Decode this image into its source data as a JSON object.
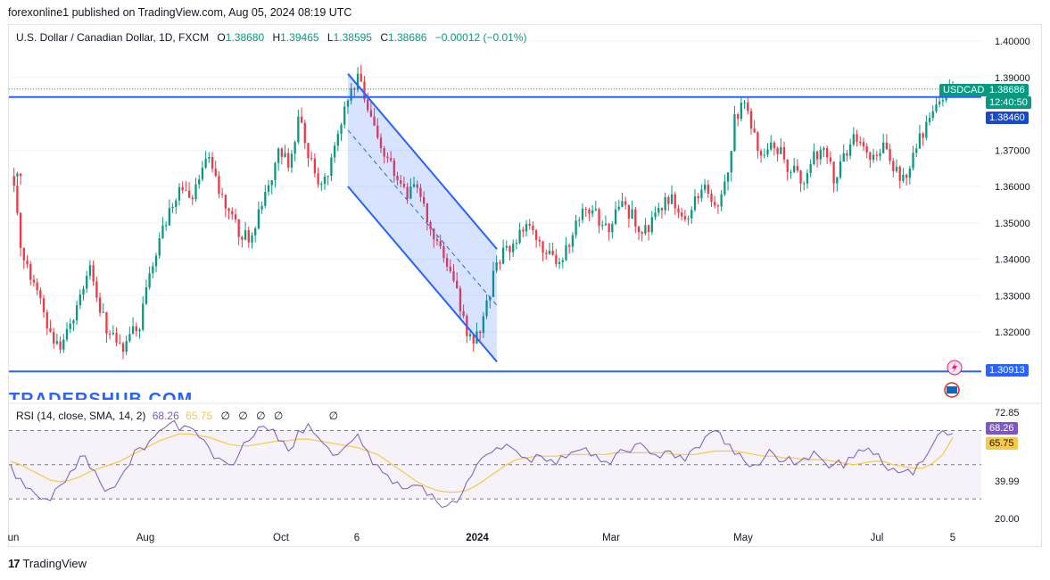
{
  "header": {
    "text": "forexonline1 published on TradingView.com, Aug 05, 2024 08:19 UTC"
  },
  "legend": {
    "symbol": "U.S. Dollar / Canadian Dollar, 1D, FXCM",
    "open_label": "O",
    "open": "1.38680",
    "high_label": "H",
    "high": "1.39465",
    "low_label": "L",
    "low": "1.38595",
    "close_label": "C",
    "close": "1.38686",
    "change": "−0.00012 (−0.01%)"
  },
  "price_tags": {
    "symbol": "USDCAD",
    "last": "1.38686",
    "countdown": "12:40:50",
    "upper_line": "1.38460",
    "lower_line": "1.30913"
  },
  "watermark": "TRADERSHUB.COM",
  "rsi": {
    "label": "RSI (14, close, SMA, 14, 2)",
    "rsi_value": "68.26",
    "sma_value": "65.75",
    "na_marks": [
      "∅",
      "∅",
      "∅",
      "∅",
      "∅"
    ],
    "axis_labels": [
      "72.85",
      "39.99",
      "20.00"
    ]
  },
  "footer": {
    "brand": "TradingView"
  },
  "colors": {
    "up": "#089981",
    "down": "#f23645",
    "line": "#2962ff",
    "channel_fill": "#2962ff",
    "rsi": "#7e57c2",
    "rsi_sma": "#f7c948",
    "rsi_band": "#7e57c2"
  },
  "chart_data": [
    {
      "type": "candlestick",
      "title": "U.S. Dollar / Canadian Dollar, 1D, FXCM",
      "ylim": [
        1.3,
        1.405
      ],
      "y_ticks": [
        "1.40000",
        "1.39000",
        "1.37000",
        "1.36000",
        "1.35000",
        "1.34000",
        "1.33000",
        "1.32000"
      ],
      "x_ticks": [
        "un",
        "Aug",
        "Oct",
        "6",
        "2024",
        "Mar",
        "May",
        "Jul",
        "5"
      ],
      "horizontal_lines": [
        1.3846,
        1.30913
      ],
      "channel": {
        "upper_start": 1.391,
        "upper_end": 1.3428,
        "lower_start": 1.36,
        "lower_end": 1.3118
      },
      "series": [
        {
          "name": "USDCAD",
          "close_path": [
            1.365,
            1.345,
            1.335,
            1.33,
            1.318,
            1.315,
            1.322,
            1.33,
            1.338,
            1.325,
            1.32,
            1.315,
            1.318,
            1.322,
            1.335,
            1.345,
            1.352,
            1.36,
            1.355,
            1.362,
            1.368,
            1.358,
            1.355,
            1.348,
            1.345,
            1.352,
            1.36,
            1.372,
            1.365,
            1.378,
            1.37,
            1.36,
            1.365,
            1.375,
            1.385,
            1.39,
            1.38,
            1.372,
            1.368,
            1.362,
            1.357,
            1.36,
            1.352,
            1.345,
            1.338,
            1.33,
            1.32,
            1.318,
            1.328,
            1.338,
            1.343,
            1.345,
            1.35,
            1.347,
            1.342,
            1.338,
            1.342,
            1.35,
            1.355,
            1.352,
            1.348,
            1.352,
            1.355,
            1.35,
            1.348,
            1.352,
            1.357,
            1.355,
            1.35,
            1.356,
            1.36,
            1.354,
            1.36,
            1.378,
            1.384,
            1.373,
            1.368,
            1.372,
            1.367,
            1.364,
            1.362,
            1.368,
            1.372,
            1.363,
            1.367,
            1.373,
            1.371,
            1.368,
            1.37,
            1.365,
            1.362,
            1.368,
            1.375,
            1.38,
            1.384,
            1.3868
          ]
        }
      ]
    },
    {
      "type": "line",
      "title": "RSI (14, close, SMA, 14, 2)",
      "ylim": [
        20,
        80
      ],
      "bands": [
        30,
        70
      ],
      "series": [
        {
          "name": "RSI",
          "values": [
            50,
            42,
            36,
            30,
            29,
            38,
            46,
            55,
            48,
            40,
            36,
            42,
            50,
            60,
            64,
            70,
            74,
            70,
            72,
            66,
            60,
            54,
            50,
            56,
            64,
            72,
            70,
            64,
            58,
            70,
            74,
            66,
            60,
            56,
            62,
            68,
            58,
            50,
            44,
            40,
            36,
            38,
            32,
            28,
            26,
            28,
            40,
            50,
            56,
            60,
            62,
            58,
            54,
            56,
            52,
            50,
            54,
            58,
            60,
            56,
            52,
            56,
            58,
            62,
            60,
            56,
            58,
            54,
            52,
            60,
            66,
            70,
            62,
            56,
            52,
            50,
            54,
            56,
            52,
            50,
            54,
            58,
            52,
            50,
            48,
            54,
            58,
            56,
            50,
            48,
            46,
            44,
            52,
            62,
            70,
            68.26
          ]
        },
        {
          "name": "SMA",
          "values": [
            52,
            50,
            47,
            44,
            41,
            40,
            41,
            43,
            46,
            48,
            50,
            52,
            55,
            58,
            61,
            64,
            66,
            68,
            68,
            67,
            66,
            64,
            62,
            61,
            61,
            62,
            63,
            64,
            64,
            65,
            65,
            64,
            63,
            62,
            61,
            60,
            58,
            56,
            52,
            48,
            44,
            40,
            37,
            35,
            34,
            34,
            35,
            38,
            42,
            46,
            50,
            53,
            54,
            55,
            55,
            55,
            56,
            56,
            56,
            56,
            56,
            57,
            57,
            57,
            57,
            57,
            57,
            56,
            56,
            56,
            57,
            58,
            58,
            58,
            57,
            56,
            55,
            55,
            54,
            54,
            53,
            53,
            53,
            52,
            51,
            50,
            51,
            52,
            52,
            50,
            49,
            48,
            48,
            51,
            56,
            65.75
          ]
        }
      ]
    }
  ]
}
